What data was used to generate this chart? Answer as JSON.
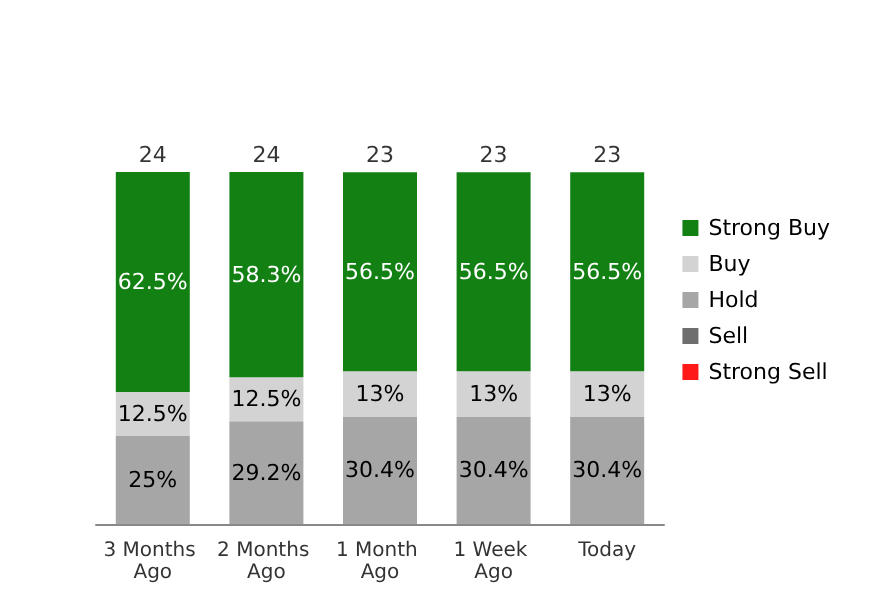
{
  "chart_data": {
    "type": "bar",
    "stacked": true,
    "categories": [
      "3 Months Ago",
      "2 Months Ago",
      "1 Month Ago",
      "1 Week Ago",
      "Today"
    ],
    "series": [
      {
        "name": "Strong Sell",
        "color": "#ff1a1a",
        "values": [
          0,
          0,
          0,
          0,
          0
        ],
        "value_labels": [
          null,
          null,
          null,
          null,
          null
        ]
      },
      {
        "name": "Sell",
        "color": "#6e6e6e",
        "values": [
          0,
          0,
          0,
          0,
          0
        ],
        "value_labels": [
          null,
          null,
          null,
          null,
          null
        ]
      },
      {
        "name": "Hold",
        "color": "#a6a6a6",
        "values": [
          25,
          29.2,
          30.4,
          30.4,
          30.4
        ],
        "value_labels": [
          "25%",
          "29.2%",
          "30.4%",
          "30.4%",
          "30.4%"
        ]
      },
      {
        "name": "Buy",
        "color": "#d3d3d3",
        "values": [
          12.5,
          12.5,
          13,
          13,
          13
        ],
        "value_labels": [
          "12.5%",
          "12.5%",
          "13%",
          "13%",
          "13%"
        ]
      },
      {
        "name": "Strong Buy",
        "color": "#138013",
        "values": [
          62.5,
          58.3,
          56.5,
          56.5,
          56.5
        ],
        "value_labels": [
          "62.5%",
          "58.3%",
          "56.5%",
          "56.5%",
          "56.5%"
        ]
      }
    ],
    "annotations": [
      "24",
      "24",
      "23",
      "23",
      "23"
    ],
    "legend": "right",
    "tick_labels": "x"
  }
}
